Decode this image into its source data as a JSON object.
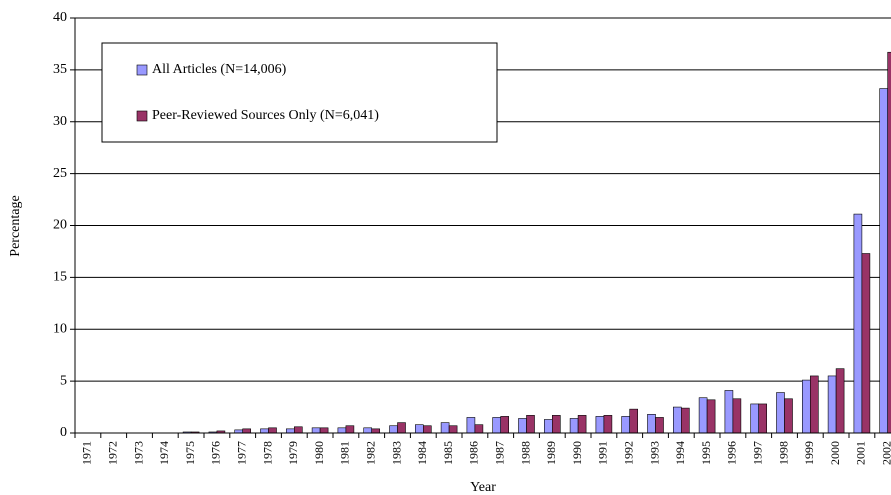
{
  "chart_data": {
    "type": "bar",
    "y_label": "Percentage",
    "x_label": "Year",
    "categories": [
      "1971",
      "1972",
      "1973",
      "1974",
      "1975",
      "1976",
      "1977",
      "1978",
      "1979",
      "1980",
      "1981",
      "1982",
      "1983",
      "1984",
      "1985",
      "1986",
      "1987",
      "1988",
      "1989",
      "1990",
      "1991",
      "1992",
      "1993",
      "1994",
      "1995",
      "1996",
      "1997",
      "1998",
      "1999",
      "2000",
      "2001",
      "2002"
    ],
    "series": [
      {
        "name": "All Articles (N=14,006)",
        "color": "#9999ff",
        "values": [
          0,
          0,
          0,
          0,
          0.1,
          0.1,
          0.3,
          0.4,
          0.4,
          0.5,
          0.5,
          0.5,
          0.7,
          0.8,
          1.0,
          1.5,
          1.5,
          1.4,
          1.3,
          1.4,
          1.6,
          1.6,
          1.8,
          2.5,
          3.4,
          4.1,
          2.8,
          3.9,
          5.1,
          5.5,
          21.1,
          33.2
        ]
      },
      {
        "name": "Peer-Reviewed Sources Only (N=6,041)",
        "color": "#993366",
        "values": [
          0,
          0,
          0,
          0,
          0.1,
          0.2,
          0.4,
          0.5,
          0.6,
          0.5,
          0.7,
          0.4,
          1.0,
          0.7,
          0.7,
          0.8,
          1.6,
          1.7,
          1.7,
          1.7,
          1.7,
          2.3,
          1.5,
          2.4,
          3.2,
          3.3,
          2.8,
          3.3,
          5.5,
          6.2,
          17.3,
          36.7
        ]
      }
    ],
    "ylim": [
      0,
      40
    ],
    "yticks": [
      0,
      5,
      10,
      15,
      20,
      25,
      30,
      35,
      40
    ],
    "grid": true
  }
}
